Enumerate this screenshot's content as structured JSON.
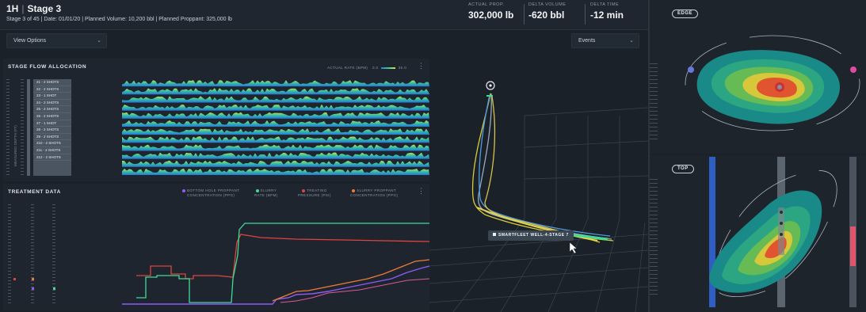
{
  "header": {
    "well": "1H",
    "stage": "Stage 3",
    "subtitle": "Stage 3 of 45 | Date: 01/01/20 | Planned Volume: 10,200 bbl | Planned Proppant: 325,000 lb",
    "metrics": [
      {
        "label": "ACTUAL PROP.",
        "value": "302,000 lb"
      },
      {
        "label": "DELTA VOLUME",
        "value": "-620 bbl"
      },
      {
        "label": "DELTA TIME",
        "value": "-12 min"
      }
    ]
  },
  "toolbar": {
    "view_options": "View Options",
    "events": "Events"
  },
  "flow_panel": {
    "title": "STAGE FLOW ALLOCATION",
    "legend_label": "ACTUAL RATE (BPM)",
    "legend_min": "0.0",
    "legend_max": "35.0",
    "stages": [
      "21 - 2 SHOTS",
      "22 - 2 SHOTS",
      "23 - 1 SHOT",
      "24 - 2 SHOTS",
      "25 - 2 SHOTS",
      "26 - 2 SHOTS",
      "27 - 1 SHOT",
      "28 - 2 SHOTS",
      "29 - 2 SHOTS",
      "210 - 2 SHOTS",
      "211 - 2 SHOTS",
      "212 - 2 SHOTS"
    ],
    "axis_label": "MEASURED DEPTH (FT)"
  },
  "treatment_panel": {
    "title": "TREATMENT DATA",
    "legend": [
      {
        "line1": "BOTTOM HOLE PROPPANT",
        "line2": "CONCENTRATION (PPG)",
        "color": "#8b5cf6"
      },
      {
        "line1": "SLURRY",
        "line2": "RATE (BPM)",
        "color": "#3ddc97"
      },
      {
        "line1": "TREATING",
        "line2": "PRESSURE (PSI)",
        "color": "#e0433f"
      },
      {
        "line1": "SLURRY PROPPANT",
        "line2": "CONCENTRATION (PPG)",
        "color": "#f07a3a"
      }
    ]
  },
  "view3d": {
    "well_tag": "SMARTFLEET WELL-4-STAGE 7"
  },
  "right": {
    "edge_label": "EDGE",
    "top_label": "TOP"
  },
  "colors": {
    "background": "#1b2129",
    "panel": "#1e252e",
    "slurry": "#3ddc97",
    "pressure": "#e0433f",
    "bh_prop": "#8b5cf6",
    "slurry_prop": "#f07a3a",
    "flow_low": "#2a7fd4",
    "flow_high": "#c9e84a"
  },
  "icons": [
    "chevron-down-icon",
    "kebab-menu-icon",
    "wellhead-marker-icon",
    "cursor-icon"
  ]
}
